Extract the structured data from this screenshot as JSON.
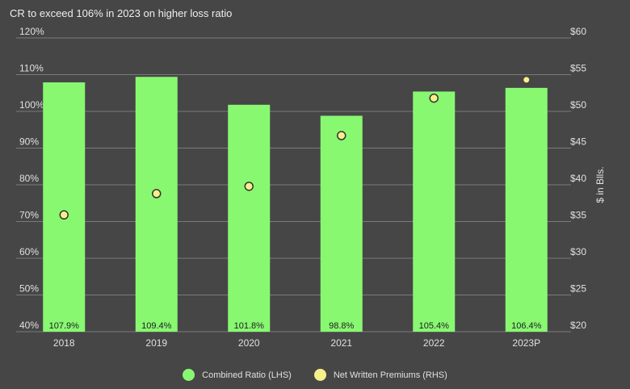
{
  "chart_data": {
    "type": "bar+scatter",
    "title": "CR to exceed 106% in 2023 on higher loss ratio",
    "categories": [
      "2018",
      "2019",
      "2020",
      "2021",
      "2022",
      "2023P"
    ],
    "series": [
      {
        "name": "Combined Ratio (LHS)",
        "type": "bar",
        "axis": "left",
        "color": "#88f871",
        "values": [
          107.9,
          109.4,
          101.8,
          98.8,
          105.4,
          106.4
        ],
        "labels": [
          "107.9%",
          "109.4%",
          "101.8%",
          "98.8%",
          "105.4%",
          "106.4%"
        ]
      },
      {
        "name": "Net Written Premiums (RHS)",
        "type": "scatter",
        "axis": "right",
        "color": "#f7ef8a",
        "values": [
          35.9,
          38.8,
          39.8,
          46.7,
          51.8,
          54.3
        ]
      }
    ],
    "y_left": {
      "range": [
        40,
        120
      ],
      "ticks": [
        "40%",
        "50%",
        "60%",
        "70%",
        "80%",
        "90%",
        "100%",
        "110%",
        "120%"
      ]
    },
    "y_right": {
      "range": [
        20,
        60
      ],
      "label": "$ in Blls.",
      "ticks": [
        "$20",
        "$25",
        "$30",
        "$35",
        "$40",
        "$45",
        "$50",
        "$55",
        "$60"
      ]
    },
    "grid": true,
    "legend": "bottom-center"
  }
}
